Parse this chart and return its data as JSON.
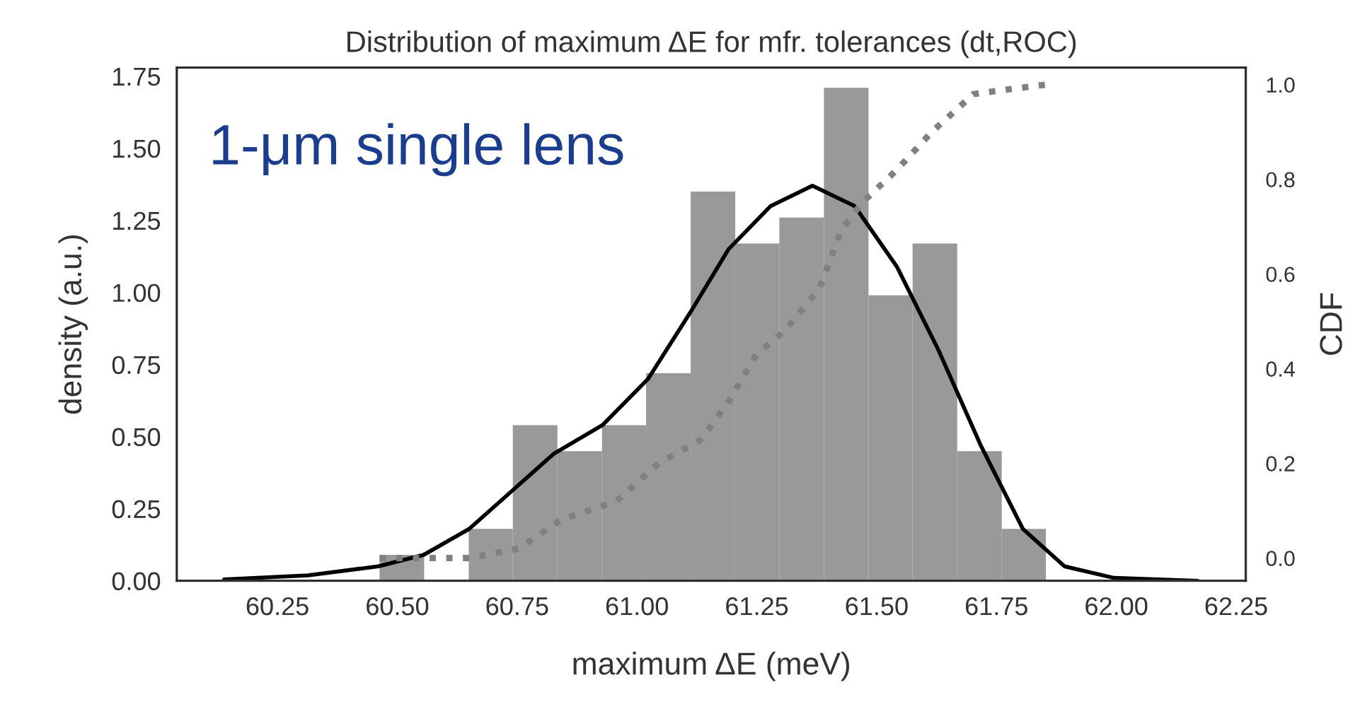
{
  "chart_data": {
    "type": "histogram",
    "title": "Distribution of maximum ΔE for mfr. tolerances (dt,ROC)",
    "xlabel": "maximum ΔE (meV)",
    "ylabel": "density (a.u.)",
    "y2label": "CDF",
    "annotations": [
      "1-μm single lens"
    ],
    "bins": [
      60.463,
      60.556,
      60.649,
      60.741,
      60.834,
      60.927,
      61.019,
      61.112,
      61.205,
      61.297,
      61.39,
      61.483,
      61.575,
      61.668,
      61.761,
      61.853
    ],
    "values": [
      0.09,
      0,
      0.18,
      0.54,
      0.45,
      0.54,
      0.72,
      1.35,
      1.17,
      1.26,
      1.71,
      0.99,
      1.17,
      0.45,
      0.18
    ],
    "color": "#999999",
    "series": [
      {
        "type": "line",
        "color": "#000000",
        "line_style": "solid",
        "x": [
          60.139,
          60.314,
          60.46,
          60.555,
          60.65,
          60.738,
          60.826,
          60.928,
          61.023,
          61.111,
          61.191,
          61.279,
          61.366,
          61.454,
          61.542,
          61.629,
          61.717,
          61.805,
          61.892,
          61.995,
          62.17
        ],
        "values": [
          0.005,
          0.019,
          0.05,
          0.09,
          0.18,
          0.31,
          0.44,
          0.54,
          0.7,
          0.93,
          1.15,
          1.3,
          1.37,
          1.3,
          1.09,
          0.8,
          0.47,
          0.18,
          0.05,
          0.01,
          0.0
        ]
      },
      {
        "type": "line",
        "axis": "y2",
        "color": "#808080",
        "line_style": "dotted",
        "x": [
          60.463,
          60.65,
          60.753,
          60.84,
          60.957,
          61.045,
          61.133,
          61.191,
          61.249,
          61.308,
          61.381,
          61.425,
          61.469,
          61.542,
          61.615,
          61.702,
          61.775,
          61.853
        ],
        "values": [
          0.0,
          0.0,
          0.02,
          0.08,
          0.12,
          0.2,
          0.25,
          0.33,
          0.43,
          0.48,
          0.57,
          0.69,
          0.75,
          0.82,
          0.9,
          0.98,
          0.99,
          1.0
        ]
      }
    ],
    "xlim": [
      60.04,
      62.27
    ],
    "xticks": [
      {
        "value": 60.25,
        "label": "60.25"
      },
      {
        "value": 60.5,
        "label": "60.50"
      },
      {
        "value": 60.75,
        "label": "60.75"
      },
      {
        "value": 61.0,
        "label": "61.00"
      },
      {
        "value": 61.25,
        "label": "61.25"
      },
      {
        "value": 61.5,
        "label": "61.50"
      },
      {
        "value": 61.75,
        "label": "61.75"
      },
      {
        "value": 62.0,
        "label": "62.00"
      },
      {
        "value": 62.25,
        "label": "62.25"
      }
    ],
    "ylim": [
      0,
      1.78
    ],
    "yticks": [
      {
        "value": 0,
        "label": "0.00"
      },
      {
        "value": 0.25,
        "label": "0.25"
      },
      {
        "value": 0.5,
        "label": "0.50"
      },
      {
        "value": 0.75,
        "label": "0.75"
      },
      {
        "value": 1.0,
        "label": "1.00"
      },
      {
        "value": 1.25,
        "label": "1.25"
      },
      {
        "value": 1.5,
        "label": "1.50"
      },
      {
        "value": 1.75,
        "label": "1.75"
      }
    ],
    "y2lim": [
      -0.048,
      1.036
    ],
    "y2ticks": [
      {
        "value": 0,
        "label": "0.0"
      },
      {
        "value": 0.2,
        "label": "0.2"
      },
      {
        "value": 0.4,
        "label": "0.4"
      },
      {
        "value": 0.6,
        "label": "0.6"
      },
      {
        "value": 0.8,
        "label": "0.8"
      },
      {
        "value": 1.0,
        "label": "1.0"
      }
    ],
    "grid": false
  }
}
